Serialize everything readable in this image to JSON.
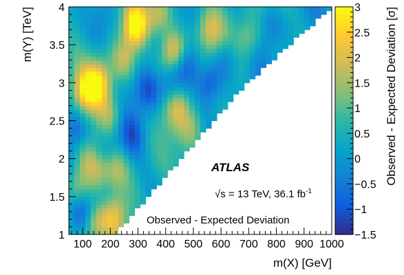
{
  "chart_data": {
    "type": "heatmap",
    "xlabel": "m(X) [GeV]",
    "ylabel": "m(Y) [TeV]",
    "zlabel": "Observed - Expected Deviation [σ]",
    "xlim": [
      50,
      1000
    ],
    "ylim": [
      1,
      4
    ],
    "zlim": [
      -1.5,
      3
    ],
    "x_ticks": [
      100,
      200,
      300,
      400,
      500,
      600,
      700,
      800,
      900,
      1000
    ],
    "y_ticks": [
      1,
      1.5,
      2,
      2.5,
      3,
      3.5,
      4
    ],
    "z_ticks": [
      -1.5,
      -1,
      -0.5,
      0,
      0.5,
      1,
      1.5,
      2,
      2.5,
      3
    ],
    "x_tick_labels": [
      "100",
      "200",
      "300",
      "400",
      "500",
      "600",
      "700",
      "800",
      "900",
      "1000"
    ],
    "y_tick_labels": [
      "1",
      "1.5",
      "2",
      "2.5",
      "3",
      "3.5",
      "4"
    ],
    "z_tick_labels": [
      "−1.5",
      "−1",
      "−0.5",
      "0",
      "0.5",
      "1",
      "1.5",
      "2",
      "2.5",
      "3"
    ],
    "boundary": [
      [
        1000,
        4
      ],
      [
        680,
        2.95
      ],
      [
        230,
        1.05
      ]
    ],
    "hotspots": [
      {
        "x": 290,
        "y": 3.75,
        "z": 2.6
      },
      {
        "x": 430,
        "y": 3.45,
        "z": 2.4
      },
      {
        "x": 160,
        "y": 3.0,
        "z": 2.2
      },
      {
        "x": 110,
        "y": 2.9,
        "z": 1.8
      },
      {
        "x": 250,
        "y": 3.3,
        "z": 1.5
      },
      {
        "x": 380,
        "y": 3.9,
        "z": 1.7
      },
      {
        "x": 560,
        "y": 3.7,
        "z": 1.4
      },
      {
        "x": 200,
        "y": 2.6,
        "z": 1.3
      },
      {
        "x": 440,
        "y": 2.7,
        "z": 1.3
      },
      {
        "x": 80,
        "y": 1.6,
        "z": 1.6
      },
      {
        "x": 140,
        "y": 1.15,
        "z": 1.5
      },
      {
        "x": 210,
        "y": 1.25,
        "z": 1.4
      },
      {
        "x": 120,
        "y": 2.0,
        "z": 1.2
      },
      {
        "x": 160,
        "y": 1.8,
        "z": 1.1
      },
      {
        "x": 500,
        "y": 2.4,
        "z": 1.0
      },
      {
        "x": 700,
        "y": 3.6,
        "z": 1.1
      },
      {
        "x": 220,
        "y": 1.9,
        "z": 1.2
      }
    ],
    "coldspots": [
      {
        "x": 340,
        "y": 2.9,
        "z": -1.2
      },
      {
        "x": 420,
        "y": 2.95,
        "z": -1.2
      },
      {
        "x": 560,
        "y": 3.0,
        "z": -1.4
      },
      {
        "x": 280,
        "y": 2.3,
        "z": -1.0
      },
      {
        "x": 70,
        "y": 2.4,
        "z": -1.0
      },
      {
        "x": 100,
        "y": 1.3,
        "z": -1.1
      },
      {
        "x": 180,
        "y": 1.5,
        "z": -0.8
      },
      {
        "x": 620,
        "y": 3.3,
        "z": -1.0
      },
      {
        "x": 200,
        "y": 2.1,
        "z": -0.8
      },
      {
        "x": 360,
        "y": 3.55,
        "z": -0.6
      },
      {
        "x": 160,
        "y": 3.7,
        "z": -0.6
      },
      {
        "x": 780,
        "y": 3.75,
        "z": -0.7
      },
      {
        "x": 480,
        "y": 3.25,
        "z": -0.9
      }
    ],
    "annotations": {
      "experiment": "ATLAS",
      "energy": "√s = 13 TeV, 36.1 fb",
      "lumi_unit_exp": "-1",
      "caption": "Observed - Expected Deviation"
    },
    "colormap": [
      "#352a87",
      "#0f5cdd",
      "#1481d6",
      "#06a4ca",
      "#2eb7a4",
      "#87bf77",
      "#d1bb59",
      "#fec832",
      "#f9fb0e"
    ],
    "grid": false
  }
}
